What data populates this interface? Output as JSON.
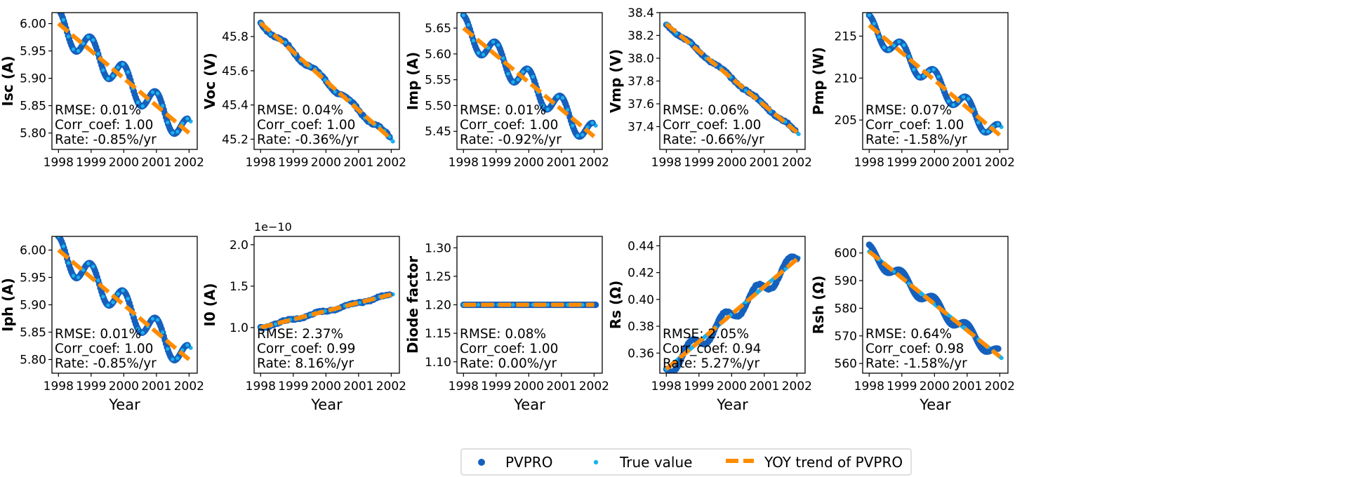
{
  "chart_data": [
    {
      "type": "scatter",
      "ylabel": "Isc (A)",
      "xlabel": "",
      "ylim": [
        5.77,
        6.02
      ],
      "xlim": [
        1997.8,
        2002.25
      ],
      "yticks": [
        "5.80",
        "5.85",
        "5.90",
        "5.95",
        "6.00"
      ],
      "xticks": [
        "1998",
        "1999",
        "2000",
        "2001",
        "2002"
      ],
      "annotation": [
        "RMSE: 0.01%",
        "Corr_coef: 1.00",
        "Rate: -0.85%/yr"
      ],
      "start": 6.0,
      "end": 5.8,
      "pvpro_range": [
        1998.0,
        2001.95
      ],
      "true_range": [
        1998.0,
        2002.05
      ],
      "osc_amp": 0.025,
      "osc_period": 1.0,
      "osc_phase": 0.0,
      "noise": 0.0,
      "true_linear": false,
      "offset_label": ""
    },
    {
      "type": "scatter",
      "ylabel": "Voc (V)",
      "xlabel": "",
      "ylim": [
        45.14,
        45.94
      ],
      "xlim": [
        1997.8,
        2002.25
      ],
      "yticks": [
        "45.2",
        "45.4",
        "45.6",
        "45.8"
      ],
      "xticks": [
        "1998",
        "1999",
        "2000",
        "2001",
        "2002"
      ],
      "annotation": [
        "RMSE: 0.04%",
        "Corr_coef: 1.00",
        "Rate: -0.36%/yr"
      ],
      "start": 45.88,
      "end": 45.2,
      "pvpro_range": [
        1998.0,
        2001.95
      ],
      "true_range": [
        1998.0,
        2002.05
      ],
      "osc_amp": 0.015,
      "osc_period": 1.0,
      "osc_phase": 0.5,
      "noise": 0.02,
      "true_linear": false,
      "offset_label": ""
    },
    {
      "type": "scatter",
      "ylabel": "Imp (A)",
      "xlabel": "",
      "ylim": [
        5.415,
        5.68
      ],
      "xlim": [
        1997.8,
        2002.25
      ],
      "yticks": [
        "5.45",
        "5.50",
        "5.55",
        "5.60",
        "5.65"
      ],
      "xticks": [
        "1998",
        "1999",
        "2000",
        "2001",
        "2002"
      ],
      "annotation": [
        "RMSE: 0.01%",
        "Corr_coef: 1.00",
        "Rate: -0.92%/yr"
      ],
      "start": 5.65,
      "end": 5.44,
      "pvpro_range": [
        1998.0,
        2001.95
      ],
      "true_range": [
        1998.0,
        2002.05
      ],
      "osc_amp": 0.025,
      "osc_period": 1.0,
      "osc_phase": 0.0,
      "noise": 0.0,
      "true_linear": false,
      "offset_label": ""
    },
    {
      "type": "scatter",
      "ylabel": "Vmp (V)",
      "xlabel": "",
      "ylim": [
        37.2,
        38.4
      ],
      "xlim": [
        1997.8,
        2002.25
      ],
      "yticks": [
        "37.4",
        "37.6",
        "37.8",
        "38.0",
        "38.2",
        "38.4"
      ],
      "xticks": [
        "1998",
        "1999",
        "2000",
        "2001",
        "2002"
      ],
      "annotation": [
        "RMSE: 0.06%",
        "Corr_coef: 1.00",
        "Rate: -0.66%/yr"
      ],
      "start": 38.3,
      "end": 37.35,
      "pvpro_range": [
        1998.0,
        2001.95
      ],
      "true_range": [
        1998.0,
        2002.05
      ],
      "osc_amp": 0.012,
      "osc_period": 1.0,
      "osc_phase": 0.5,
      "noise": 0.02,
      "true_linear": false,
      "offset_label": ""
    },
    {
      "type": "scatter",
      "ylabel": "Pmp (W)",
      "xlabel": "",
      "ylim": [
        201.5,
        217.8
      ],
      "xlim": [
        1997.8,
        2002.25
      ],
      "yticks": [
        "205",
        "210",
        "215"
      ],
      "xticks": [
        "1998",
        "1999",
        "2000",
        "2001",
        "2002"
      ],
      "annotation": [
        "RMSE: 0.07%",
        "Corr_coef: 1.00",
        "Rate: -1.58%/yr"
      ],
      "start": 216.3,
      "end": 203.2,
      "pvpro_range": [
        1998.0,
        2001.95
      ],
      "true_range": [
        1998.0,
        2002.05
      ],
      "osc_amp": 1.2,
      "osc_period": 1.0,
      "osc_phase": 0.0,
      "noise": 0.0,
      "true_linear": false,
      "offset_label": ""
    },
    {
      "type": "scatter",
      "ylabel": "Iph (A)",
      "xlabel": "Year",
      "ylim": [
        5.775,
        6.025
      ],
      "xlim": [
        1997.8,
        2002.25
      ],
      "yticks": [
        "5.80",
        "5.85",
        "5.90",
        "5.95",
        "6.00"
      ],
      "xticks": [
        "1998",
        "1999",
        "2000",
        "2001",
        "2002"
      ],
      "annotation": [
        "RMSE: 0.01%",
        "Corr_coef: 1.00",
        "Rate: -0.85%/yr"
      ],
      "start": 6.0,
      "end": 5.8,
      "pvpro_range": [
        1998.0,
        2001.95
      ],
      "true_range": [
        1998.0,
        2002.05
      ],
      "osc_amp": 0.025,
      "osc_period": 1.0,
      "osc_phase": 0.0,
      "noise": 0.0,
      "true_linear": false,
      "offset_label": ""
    },
    {
      "type": "scatter",
      "ylabel": "I0 (A)",
      "xlabel": "Year",
      "ylim": [
        0.45,
        2.1
      ],
      "xlim": [
        1997.8,
        2002.25
      ],
      "yticks": [
        "1.0",
        "1.5",
        "2.0"
      ],
      "xticks": [
        "1998",
        "1999",
        "2000",
        "2001",
        "2002"
      ],
      "annotation": [
        "RMSE: 2.37%",
        "Corr_coef: 0.99",
        "Rate: 8.16%/yr"
      ],
      "start": 1.0,
      "end": 1.4,
      "pvpro_range": [
        1998.0,
        2001.95
      ],
      "true_range": [
        1998.0,
        2002.05
      ],
      "osc_amp": 0.012,
      "osc_period": 1.0,
      "osc_phase": 0.5,
      "noise": 0.015,
      "true_linear": false,
      "offset_label": "1e−10"
    },
    {
      "type": "scatter",
      "ylabel": "Diode factor",
      "xlabel": "Year",
      "ylim": [
        1.08,
        1.32
      ],
      "xlim": [
        1997.8,
        2002.25
      ],
      "yticks": [
        "1.10",
        "1.15",
        "1.20",
        "1.25",
        "1.30"
      ],
      "xticks": [
        "1998",
        "1999",
        "2000",
        "2001",
        "2002"
      ],
      "annotation": [
        "RMSE: 0.08%",
        "Corr_coef: 1.00",
        "Rate: 0.00%/yr"
      ],
      "start": 1.2,
      "end": 1.2,
      "pvpro_range": [
        1998.0,
        2002.05
      ],
      "true_range": [
        1998.0,
        2002.05
      ],
      "osc_amp": 0.0,
      "osc_period": 1.0,
      "osc_phase": 0.0,
      "noise": 0.0,
      "true_linear": false,
      "offset_label": ""
    },
    {
      "type": "scatter",
      "ylabel": "Rs (Ω)",
      "xlabel": "Year",
      "ylim": [
        0.345,
        0.447
      ],
      "xlim": [
        1997.8,
        2002.25
      ],
      "yticks": [
        "0.36",
        "0.38",
        "0.40",
        "0.42",
        "0.44"
      ],
      "xticks": [
        "1998",
        "1999",
        "2000",
        "2001",
        "2002"
      ],
      "annotation": [
        "RMSE: 2.05%",
        "Corr_coef: 0.94",
        "Rate: 5.27%/yr"
      ],
      "start": 0.348,
      "end": 0.43,
      "pvpro_range": [
        1998.0,
        2002.0
      ],
      "true_range": [
        1998.0,
        2002.05
      ],
      "osc_amp": 0.006,
      "osc_period": 1.0,
      "osc_phase": 0.5,
      "noise": 0.012,
      "true_linear": true,
      "offset_label": ""
    },
    {
      "type": "scatter",
      "ylabel": "Rsh (Ω)",
      "xlabel": "Year",
      "ylim": [
        556.5,
        606
      ],
      "xlim": [
        1997.8,
        2002.25
      ],
      "yticks": [
        "560",
        "570",
        "580",
        "590",
        "600"
      ],
      "xticks": [
        "1998",
        "1999",
        "2000",
        "2001",
        "2002"
      ],
      "annotation": [
        "RMSE: 0.64%",
        "Corr_coef: 0.98",
        "Rate: -1.58%/yr"
      ],
      "start": 600.5,
      "end": 562.5,
      "pvpro_range": [
        1998.0,
        2001.95
      ],
      "true_range": [
        1998.0,
        2002.05
      ],
      "osc_amp": 2.5,
      "osc_period": 1.0,
      "osc_phase": 0.0,
      "noise": 0.0,
      "true_linear": true,
      "offset_label": ""
    }
  ],
  "legend": {
    "items": [
      {
        "label": "PVPRO",
        "marker": "dot-large",
        "color": "#1560bd"
      },
      {
        "label": "True value",
        "marker": "dot-small",
        "color": "#1ab2ec"
      },
      {
        "label": "YOY trend of PVPRO",
        "marker": "dashed-line",
        "color": "#ff8c00"
      }
    ],
    "placement": "bottom-center"
  },
  "colors": {
    "pvpro": "#1560bd",
    "true": "#1ab2ec",
    "trend": "#ff8c00"
  }
}
